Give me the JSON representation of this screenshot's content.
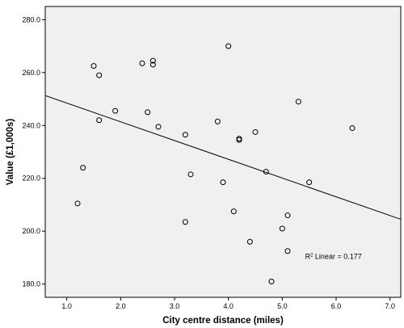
{
  "chart_data": {
    "type": "scatter",
    "title": "",
    "xlabel": "City centre distance (miles)",
    "ylabel": "Value (£1,000s)",
    "xlim": [
      0.6,
      7.2
    ],
    "ylim": [
      175,
      285
    ],
    "xticks": [
      "1.0",
      "2.0",
      "3.0",
      "4.0",
      "5.0",
      "6.0",
      "7.0"
    ],
    "xtick_values": [
      1,
      2,
      3,
      4,
      5,
      6,
      7
    ],
    "yticks": [
      "180.0",
      "200.0",
      "220.0",
      "240.0",
      "260.0",
      "280.0"
    ],
    "ytick_values": [
      180,
      200,
      220,
      240,
      260,
      280
    ],
    "grid": false,
    "background_color": "#f0f0f0",
    "marker_color": "#000000",
    "points": [
      {
        "x": 1.2,
        "y": 210.5
      },
      {
        "x": 1.3,
        "y": 224.0
      },
      {
        "x": 1.5,
        "y": 262.5
      },
      {
        "x": 1.6,
        "y": 259.0
      },
      {
        "x": 1.6,
        "y": 242.0
      },
      {
        "x": 1.9,
        "y": 245.5
      },
      {
        "x": 2.4,
        "y": 263.5
      },
      {
        "x": 2.5,
        "y": 245.0
      },
      {
        "x": 2.6,
        "y": 264.5
      },
      {
        "x": 2.6,
        "y": 263.0
      },
      {
        "x": 2.7,
        "y": 239.5
      },
      {
        "x": 3.2,
        "y": 236.5
      },
      {
        "x": 3.2,
        "y": 203.5
      },
      {
        "x": 3.3,
        "y": 221.5
      },
      {
        "x": 3.8,
        "y": 241.5
      },
      {
        "x": 3.9,
        "y": 218.5
      },
      {
        "x": 4.0,
        "y": 270.0
      },
      {
        "x": 4.1,
        "y": 207.5
      },
      {
        "x": 4.2,
        "y": 235.0
      },
      {
        "x": 4.2,
        "y": 234.5
      },
      {
        "x": 4.4,
        "y": 196.0
      },
      {
        "x": 4.5,
        "y": 237.5
      },
      {
        "x": 4.7,
        "y": 222.5
      },
      {
        "x": 4.8,
        "y": 181.0
      },
      {
        "x": 5.0,
        "y": 201.0
      },
      {
        "x": 5.1,
        "y": 206.0
      },
      {
        "x": 5.1,
        "y": 192.5
      },
      {
        "x": 5.3,
        "y": 249.0
      },
      {
        "x": 5.5,
        "y": 218.5
      },
      {
        "x": 6.3,
        "y": 239.0
      }
    ],
    "fit_line": {
      "type": "linear",
      "x_start": 0.6,
      "y_start": 251.3,
      "x_end": 7.2,
      "y_end": 204.5,
      "annotation_prefix": "R",
      "annotation_sup": "2",
      "annotation_suffix": " Linear = 0.177",
      "annotation_x": 5.95,
      "annotation_y": 189.5
    }
  }
}
